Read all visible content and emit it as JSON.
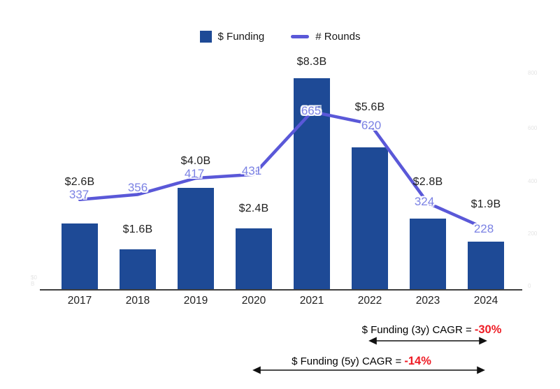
{
  "legend": {
    "items": [
      {
        "label": "$ Funding",
        "swatch": "square",
        "color": "#1e4a96"
      },
      {
        "label": "# Rounds",
        "swatch": "line",
        "color": "#5a58d8"
      }
    ]
  },
  "chart_data": {
    "type": "bar+line combo",
    "categories": [
      "2017",
      "2018",
      "2019",
      "2020",
      "2021",
      "2022",
      "2023",
      "2024"
    ],
    "series": [
      {
        "name": "$ Funding",
        "type": "bar",
        "unit": "USD billions",
        "values": [
          2.6,
          1.6,
          4.0,
          2.4,
          8.3,
          5.6,
          2.8,
          1.9
        ],
        "data_labels": [
          "$2.6B",
          "$1.6B",
          "$4.0B",
          "$2.4B",
          "$8.3B",
          "$5.6B",
          "$2.8B",
          "$1.9B"
        ],
        "color": "#1e4a96"
      },
      {
        "name": "# Rounds",
        "type": "line",
        "values": [
          337,
          356,
          417,
          431,
          665,
          620,
          324,
          228
        ],
        "data_labels": [
          "337",
          "356",
          "417",
          "431",
          "665",
          "620",
          "324",
          "228"
        ],
        "color": "#5a58d8",
        "label_color": "#7b82e4"
      }
    ],
    "gridlines": false,
    "legend_position": "top-center",
    "x_axis": {
      "visible": true
    },
    "y_axis_left": {
      "visible": false,
      "remnant_label": "$0 B"
    },
    "y_axis_right": {
      "visible": false,
      "remnant_ticks": [
        "800",
        "600",
        "400",
        "200",
        "0"
      ],
      "implied_range": [
        0,
        800
      ]
    }
  },
  "annotations": {
    "cagr_3y": {
      "text": "$ Funding (3y) CAGR = ",
      "value": "-30%",
      "value_color": "#ee1c25",
      "arrow_span_years": [
        "2022",
        "2024"
      ]
    },
    "cagr_5y": {
      "text": "$ Funding (5y) CAGR = ",
      "value": "-14%",
      "value_color": "#ee1c25",
      "arrow_span_years": [
        "2020",
        "2024"
      ]
    }
  }
}
